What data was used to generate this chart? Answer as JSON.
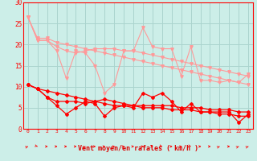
{
  "bg_color": "#cceee8",
  "grid_color": "#aad4ce",
  "line_color_dark": "#ff0000",
  "line_color_light": "#ff9999",
  "xlabel": "Vent moyen/en rafales ( km/h )",
  "xlabel_color": "#dd0000",
  "xlim": [
    -0.5,
    23.5
  ],
  "ylim": [
    0,
    30
  ],
  "yticks": [
    0,
    5,
    10,
    15,
    20,
    25,
    30
  ],
  "xticks": [
    0,
    1,
    2,
    3,
    4,
    5,
    6,
    7,
    8,
    9,
    10,
    11,
    12,
    13,
    14,
    15,
    16,
    17,
    18,
    19,
    20,
    21,
    22,
    23
  ],
  "series_light": [
    [
      26.5,
      21.0,
      21.0,
      18.5,
      12.0,
      18.5,
      18.0,
      15.0,
      8.5,
      10.5,
      18.5,
      18.5,
      24.0,
      19.5,
      19.0,
      19.0,
      12.5,
      19.5,
      11.5,
      11.5,
      11.0,
      11.5,
      11.0,
      13.0
    ],
    [
      26.5,
      21.0,
      21.0,
      19.5,
      18.5,
      18.0,
      18.5,
      19.0,
      19.0,
      19.0,
      18.5,
      18.5,
      18.0,
      17.5,
      17.0,
      16.5,
      16.0,
      15.5,
      15.0,
      14.5,
      14.0,
      13.5,
      13.0,
      12.5
    ],
    [
      26.5,
      21.5,
      21.5,
      20.5,
      20.0,
      19.5,
      19.0,
      18.5,
      18.0,
      17.5,
      17.0,
      16.5,
      16.0,
      15.5,
      15.0,
      14.5,
      14.0,
      13.5,
      13.0,
      12.5,
      12.0,
      11.5,
      11.0,
      10.5
    ]
  ],
  "series_dark": [
    [
      10.5,
      9.5,
      7.5,
      5.5,
      3.5,
      5.0,
      6.5,
      6.0,
      3.0,
      5.0,
      5.5,
      5.0,
      8.5,
      7.5,
      8.5,
      6.5,
      4.0,
      6.0,
      4.0,
      4.0,
      4.0,
      4.0,
      1.5,
      3.5
    ],
    [
      10.5,
      9.5,
      7.5,
      6.5,
      6.5,
      6.5,
      6.0,
      6.5,
      7.0,
      6.5,
      6.0,
      5.5,
      5.5,
      5.5,
      5.5,
      5.5,
      5.0,
      5.0,
      5.0,
      4.5,
      4.5,
      4.5,
      4.0,
      4.0
    ],
    [
      10.5,
      9.5,
      9.0,
      8.5,
      8.0,
      7.5,
      7.0,
      6.5,
      6.0,
      5.5,
      5.5,
      5.5,
      5.0,
      5.0,
      5.0,
      4.5,
      4.5,
      4.5,
      4.0,
      4.0,
      3.5,
      3.5,
      3.0,
      3.0
    ]
  ],
  "arrow_angles": [
    45,
    135,
    90,
    90,
    90,
    90,
    45,
    90,
    90,
    90,
    90,
    90,
    90,
    90,
    135,
    90,
    90,
    135,
    90,
    90,
    45,
    90,
    45,
    45
  ]
}
